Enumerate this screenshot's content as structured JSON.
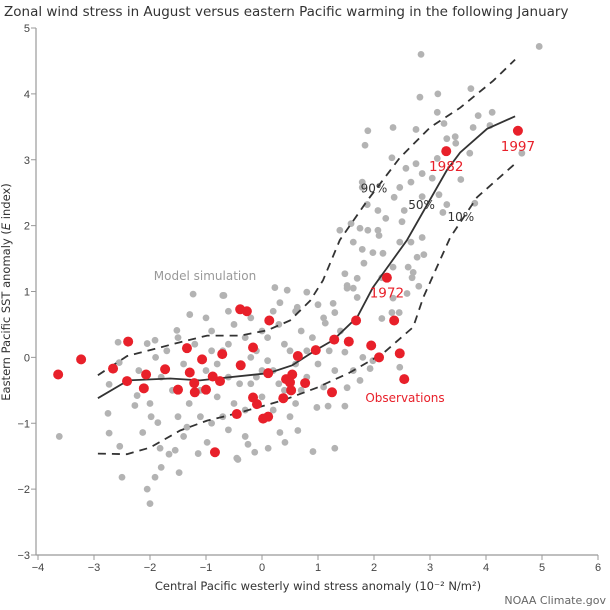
{
  "chart_data": {
    "type": "scatter",
    "title": "Zonal wind stress in August versus eastern Pacific warming in the following January",
    "xlabel": "Central Pacific westerly wind stress anomaly (10⁻² N/m²)",
    "ylabel_pre": "Eastern Pacific SST anomaly (",
    "ylabel_var": "E",
    "ylabel_post": " index)",
    "xlim": [
      -4,
      6
    ],
    "ylim": [
      -3,
      5
    ],
    "xticks": [
      "−4",
      "−3",
      "−2",
      "−1",
      "0",
      "1",
      "2",
      "3",
      "4",
      "5",
      "6"
    ],
    "yticks": [
      "−3",
      "−2",
      "−1",
      "0",
      "1",
      "2",
      "3",
      "4",
      "5"
    ],
    "grid": false,
    "colors": {
      "model": "#b3b3b3",
      "observations": "#e8202a",
      "curves": "#333333",
      "axis": "#999999"
    },
    "model_label": "Model simulation",
    "observations_label": "Observations",
    "model_points": [
      [
        -3.62,
        -1.2
      ],
      [
        4.95,
        4.72
      ],
      [
        2.84,
        4.6
      ],
      [
        2.82,
        3.95
      ],
      [
        3.14,
        4.0
      ],
      [
        3.73,
        4.08
      ],
      [
        3.13,
        3.72
      ],
      [
        3.25,
        3.55
      ],
      [
        3.86,
        3.67
      ],
      [
        4.11,
        3.72
      ],
      [
        3.77,
        3.49
      ],
      [
        4.07,
        3.52
      ],
      [
        1.89,
        3.44
      ],
      [
        2.34,
        3.49
      ],
      [
        2.75,
        3.46
      ],
      [
        1.84,
        3.22
      ],
      [
        3.3,
        3.32
      ],
      [
        3.45,
        3.35
      ],
      [
        3.46,
        3.25
      ],
      [
        3.71,
        3.1
      ],
      [
        4.64,
        3.1
      ],
      [
        2.32,
        3.03
      ],
      [
        3.13,
        3.02
      ],
      [
        2.57,
        2.87
      ],
      [
        2.75,
        2.94
      ],
      [
        2.86,
        2.79
      ],
      [
        3.04,
        2.72
      ],
      [
        3.55,
        2.7
      ],
      [
        2.66,
        2.66
      ],
      [
        1.79,
        2.66
      ],
      [
        1.79,
        2.58
      ],
      [
        2.46,
        2.58
      ],
      [
        2.86,
        2.44
      ],
      [
        2.36,
        2.43
      ],
      [
        3.16,
        2.47
      ],
      [
        1.88,
        2.32
      ],
      [
        3.3,
        2.32
      ],
      [
        3.8,
        2.34
      ],
      [
        2.07,
        2.23
      ],
      [
        2.54,
        2.23
      ],
      [
        3.23,
        2.2
      ],
      [
        2.21,
        2.11
      ],
      [
        2.5,
        2.06
      ],
      [
        1.59,
        2.03
      ],
      [
        1.75,
        1.96
      ],
      [
        1.89,
        1.93
      ],
      [
        2.07,
        1.93
      ],
      [
        2.09,
        1.85
      ],
      [
        1.63,
        1.75
      ],
      [
        2.46,
        1.75
      ],
      [
        2.66,
        1.75
      ],
      [
        2.86,
        1.82
      ],
      [
        1.79,
        1.64
      ],
      [
        1.98,
        1.59
      ],
      [
        2.16,
        1.58
      ],
      [
        2.77,
        1.52
      ],
      [
        2.89,
        1.56
      ],
      [
        1.82,
        1.43
      ],
      [
        2.34,
        1.37
      ],
      [
        2.61,
        1.37
      ],
      [
        2.7,
        1.29
      ],
      [
        2.68,
        1.21
      ],
      [
        1.48,
        1.27
      ],
      [
        1.7,
        1.2
      ],
      [
        2.14,
        1.21
      ],
      [
        2.8,
        1.08
      ],
      [
        1.52,
        1.09
      ],
      [
        1.63,
        1.05
      ],
      [
        1.39,
        1.93
      ],
      [
        -2.75,
        -0.85
      ],
      [
        -2.73,
        -1.15
      ],
      [
        -2.54,
        -1.35
      ],
      [
        -2.5,
        -1.82
      ],
      [
        -2.57,
        0.23
      ],
      [
        -2.55,
        -0.08
      ],
      [
        -2.73,
        -0.41
      ],
      [
        -2.23,
        -0.58
      ],
      [
        -2.27,
        -0.73
      ],
      [
        -2.05,
        0.21
      ],
      [
        -1.91,
        0.26
      ],
      [
        -1.23,
        0.96
      ],
      [
        -0.7,
        0.94
      ],
      [
        -1.29,
        0.65
      ],
      [
        -1.52,
        0.41
      ],
      [
        -1.98,
        -0.9
      ],
      [
        -1.86,
        -0.99
      ],
      [
        -2.13,
        -1.14
      ],
      [
        -1.82,
        -1.38
      ],
      [
        -1.66,
        -1.47
      ],
      [
        -1.91,
        -1.82
      ],
      [
        -1.48,
        -1.75
      ],
      [
        -1.8,
        -1.67
      ],
      [
        -1.14,
        -1.46
      ],
      [
        -0.98,
        -1.29
      ],
      [
        -0.45,
        -1.53
      ],
      [
        -1.55,
        -1.41
      ],
      [
        -1.34,
        -1.06
      ],
      [
        -2,
        -2.22
      ],
      [
        -2.05,
        -2.0
      ],
      [
        -0.43,
        -1.55
      ],
      [
        -0.25,
        -1.32
      ],
      [
        -0.13,
        -1.44
      ],
      [
        0.11,
        -1.38
      ],
      [
        0.41,
        -1.29
      ],
      [
        0.91,
        -1.43
      ],
      [
        1.3,
        -1.38
      ],
      [
        0.32,
        -1.14
      ],
      [
        0.64,
        -1.11
      ],
      [
        0.98,
        -0.76
      ],
      [
        1.18,
        -0.74
      ],
      [
        1.48,
        -0.74
      ],
      [
        1.52,
        -0.46
      ],
      [
        1.75,
        -0.35
      ],
      [
        1.93,
        -0.17
      ],
      [
        1.63,
        -0.2
      ],
      [
        1.48,
        0.08
      ],
      [
        1.8,
        0
      ],
      [
        1.98,
        -0.05
      ],
      [
        2.46,
        -0.15
      ],
      [
        2.32,
        0.68
      ],
      [
        2.14,
        0.59
      ],
      [
        2.45,
        0.68
      ],
      [
        1.52,
        1.05
      ],
      [
        1.7,
        0.91
      ],
      [
        2.34,
        0.9
      ],
      [
        2.59,
        0.97
      ],
      [
        1.27,
        0.82
      ],
      [
        1.3,
        0.68
      ],
      [
        0.8,
        0.99
      ],
      [
        0.45,
        1.02
      ],
      [
        0.23,
        1.06
      ],
      [
        -0.68,
        0.94
      ],
      [
        0.32,
        0.83
      ],
      [
        0.63,
        0.76
      ],
      [
        1.13,
        0.52
      ],
      [
        -1.4,
        -0.1
      ],
      [
        -1.2,
        0.2
      ],
      [
        -1.0,
        -0.2
      ],
      [
        -0.9,
        0.4
      ],
      [
        -0.8,
        -0.6
      ],
      [
        -0.7,
        0.1
      ],
      [
        -0.6,
        -0.3
      ],
      [
        -0.5,
        0.5
      ],
      [
        -0.5,
        -0.7
      ],
      [
        -0.4,
        -0.1
      ],
      [
        -0.3,
        0.3
      ],
      [
        -0.2,
        -0.4
      ],
      [
        -0.1,
        0.1
      ],
      [
        0,
        -0.6
      ],
      [
        0.1,
        0.3
      ],
      [
        0.2,
        -0.2
      ],
      [
        0.3,
        0.5
      ],
      [
        0.4,
        -0.5
      ],
      [
        0.5,
        0.1
      ],
      [
        0.6,
        -0.1
      ],
      [
        0.7,
        0.4
      ],
      [
        0.8,
        -0.3
      ],
      [
        0.9,
        0.3
      ],
      [
        1.0,
        -0.1
      ],
      [
        1.1,
        0.6
      ],
      [
        1.2,
        0.1
      ],
      [
        1.3,
        -0.2
      ],
      [
        1.4,
        0.4
      ],
      [
        -1.6,
        -0.5
      ],
      [
        -1.7,
        0.1
      ],
      [
        -1.8,
        -0.3
      ],
      [
        -1.5,
        0.3
      ],
      [
        -1.3,
        -0.7
      ],
      [
        -1.1,
        -0.9
      ],
      [
        -0.9,
        -1.0
      ],
      [
        -0.7,
        -0.9
      ],
      [
        -0.3,
        -0.8
      ],
      [
        0.2,
        -0.8
      ],
      [
        0.6,
        -0.7
      ],
      [
        -1.2,
        -0.4
      ],
      [
        -1.0,
        0.6
      ],
      [
        -0.6,
        0.7
      ],
      [
        -0.2,
        0.6
      ],
      [
        0.0,
        0.4
      ],
      [
        0.4,
        0.2
      ],
      [
        0.8,
        0.1
      ],
      [
        -0.8,
        -0.1
      ],
      [
        -0.4,
        -0.4
      ],
      [
        0.0,
        -0.2
      ],
      [
        0.3,
        -0.4
      ],
      [
        -1.9,
        0.0
      ],
      [
        -2.2,
        -0.2
      ],
      [
        -2.0,
        -0.7
      ],
      [
        -1.4,
        -1.2
      ],
      [
        -0.6,
        -1.1
      ],
      [
        0.5,
        -0.9
      ],
      [
        1.0,
        0.8
      ],
      [
        0.6,
        0.7
      ],
      [
        -0.1,
        -0.3
      ],
      [
        -0.9,
        0.1
      ],
      [
        -0.2,
        0.0
      ],
      [
        0.1,
        -0.05
      ],
      [
        -0.6,
        0.2
      ],
      [
        -1.1,
        -0.5
      ],
      [
        0.7,
        -0.5
      ],
      [
        1.1,
        -0.45
      ],
      [
        -1.5,
        -0.9
      ],
      [
        -0.3,
        -1.2
      ],
      [
        0.2,
        0.7
      ]
    ],
    "observation_points": [
      [
        -3.64,
        -0.26
      ],
      [
        -3.23,
        -0.03
      ],
      [
        -2.66,
        -0.17
      ],
      [
        -2.39,
        0.24
      ],
      [
        -2.41,
        -0.36
      ],
      [
        -2.11,
        -0.47
      ],
      [
        -2.07,
        -0.26
      ],
      [
        -1.73,
        -0.18
      ],
      [
        -1.34,
        0.14
      ],
      [
        -1.07,
        -0.03
      ],
      [
        -1.29,
        -0.23
      ],
      [
        -1.21,
        -0.39
      ],
      [
        -1.2,
        -0.53
      ],
      [
        -1.0,
        -0.49
      ],
      [
        -1.5,
        -0.49
      ],
      [
        -0.88,
        -0.29
      ],
      [
        -0.75,
        -0.36
      ],
      [
        -0.71,
        0.05
      ],
      [
        -0.39,
        0.73
      ],
      [
        -0.27,
        0.7
      ],
      [
        0.13,
        0.56
      ],
      [
        1.68,
        0.56
      ],
      [
        2.36,
        0.56
      ],
      [
        -0.16,
        0.15
      ],
      [
        -0.38,
        -0.12
      ],
      [
        0.11,
        -0.24
      ],
      [
        0.43,
        -0.33
      ],
      [
        0.54,
        -0.26
      ],
      [
        0.5,
        -0.38
      ],
      [
        0.52,
        -0.5
      ],
      [
        0.77,
        -0.39
      ],
      [
        0.64,
        0.02
      ],
      [
        0.96,
        0.11
      ],
      [
        1.29,
        0.27
      ],
      [
        1.55,
        0.24
      ],
      [
        1.95,
        0.18
      ],
      [
        2.09,
        0.0
      ],
      [
        2.46,
        0.06
      ],
      [
        2.54,
        -0.33
      ],
      [
        1.25,
        -0.53
      ],
      [
        0.38,
        -0.62
      ],
      [
        -0.16,
        -0.61
      ],
      [
        -0.09,
        -0.71
      ],
      [
        -0.45,
        -0.86
      ],
      [
        0.02,
        -0.93
      ],
      [
        0.11,
        -0.9
      ],
      [
        -0.84,
        -1.44
      ]
    ],
    "labeled_observations": [
      {
        "year": "1972",
        "x": 2.23,
        "y": 1.21
      },
      {
        "year": "1982",
        "x": 3.29,
        "y": 3.13
      },
      {
        "year": "1997",
        "x": 4.57,
        "y": 3.44
      }
    ],
    "curves": [
      {
        "name": "90%",
        "style": "dashed",
        "label_at": [
          2.0,
          2.5
        ],
        "points": [
          [
            -2.93,
            -0.27
          ],
          [
            -2.41,
            0.02
          ],
          [
            -2.0,
            0.11
          ],
          [
            -1.46,
            0.23
          ],
          [
            -0.98,
            0.33
          ],
          [
            -0.39,
            0.33
          ],
          [
            0.09,
            0.41
          ],
          [
            0.5,
            0.56
          ],
          [
            0.86,
            0.86
          ],
          [
            1.09,
            1.17
          ],
          [
            1.39,
            1.78
          ],
          [
            1.88,
            2.38
          ],
          [
            2.46,
            3.03
          ],
          [
            3.0,
            3.49
          ],
          [
            3.54,
            3.79
          ],
          [
            4.13,
            4.2
          ],
          [
            4.52,
            4.52
          ]
        ]
      },
      {
        "name": "50%",
        "style": "solid",
        "label_at": [
          2.85,
          2.25
        ],
        "points": [
          [
            -2.93,
            -0.62
          ],
          [
            -2.39,
            -0.35
          ],
          [
            -1.64,
            -0.32
          ],
          [
            -1.11,
            -0.35
          ],
          [
            0.11,
            -0.24
          ],
          [
            0.54,
            -0.12
          ],
          [
            0.96,
            0.11
          ],
          [
            1.27,
            0.26
          ],
          [
            1.7,
            0.61
          ],
          [
            1.98,
            1.06
          ],
          [
            2.59,
            1.78
          ],
          [
            3.3,
            2.84
          ],
          [
            3.54,
            3.11
          ],
          [
            4.02,
            3.47
          ],
          [
            4.52,
            3.66
          ]
        ]
      },
      {
        "name": "10%",
        "style": "dashed",
        "label_at": [
          3.55,
          2.07
        ],
        "points": [
          [
            -2.93,
            -1.46
          ],
          [
            -2.41,
            -1.47
          ],
          [
            -2.0,
            -1.37
          ],
          [
            -1.46,
            -1.11
          ],
          [
            -0.98,
            -0.96
          ],
          [
            -0.45,
            -0.85
          ],
          [
            0.38,
            -0.65
          ],
          [
            0.98,
            -0.46
          ],
          [
            1.57,
            -0.23
          ],
          [
            2.16,
            0.06
          ],
          [
            2.7,
            0.46
          ],
          [
            2.88,
            0.91
          ],
          [
            3.36,
            1.82
          ],
          [
            3.84,
            2.43
          ],
          [
            4.52,
            2.94
          ]
        ]
      }
    ]
  },
  "credit": "NOAA Climate.gov"
}
